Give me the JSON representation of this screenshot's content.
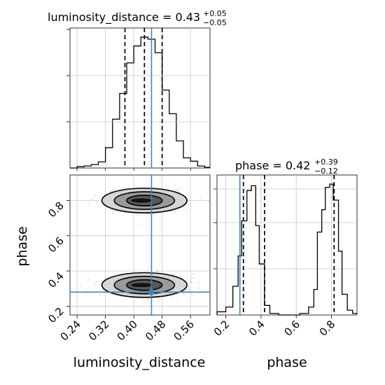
{
  "chart_data": {
    "type": "corner",
    "parameters": [
      "luminosity_distance",
      "phase"
    ],
    "truths": {
      "luminosity_distance": 0.45,
      "phase": 0.28
    },
    "luminosity_distance": {
      "title": "luminosity_distance = 0.43",
      "sup": "+0.05",
      "sub": "−0.05",
      "xlabel": "luminosity_distance",
      "xlim": [
        0.22,
        0.615
      ],
      "xticks": [
        "0.24",
        "0.32",
        "0.40",
        "0.48",
        "0.56"
      ],
      "xtick_values": [
        0.24,
        0.32,
        0.4,
        0.48,
        0.56
      ],
      "quantiles": [
        0.375,
        0.43,
        0.48
      ],
      "hist_edges": [
        0.22,
        0.24,
        0.26,
        0.28,
        0.3,
        0.32,
        0.34,
        0.36,
        0.38,
        0.4,
        0.42,
        0.44,
        0.46,
        0.48,
        0.5,
        0.52,
        0.54,
        0.56,
        0.58,
        0.6,
        0.615
      ],
      "hist_counts": [
        0,
        2,
        3,
        5,
        9,
        30,
        72,
        110,
        155,
        180,
        193,
        190,
        170,
        115,
        80,
        40,
        15,
        10,
        3,
        1
      ]
    },
    "phase": {
      "title": "phase = 0.42",
      "sup": "+0.39",
      "sub": "−0.12",
      "xlabel": "phase",
      "ylabel": "phase",
      "xlim": [
        0.15,
        0.945
      ],
      "xticks": [
        "0.2",
        "0.4",
        "0.6",
        "0.8"
      ],
      "xtick_values": [
        0.2,
        0.4,
        0.6,
        0.8
      ],
      "yticks": [
        "0.2",
        "0.4",
        "0.6",
        "0.8"
      ],
      "ytick_values": [
        0.2,
        0.4,
        0.6,
        0.8
      ],
      "quantiles": [
        0.3,
        0.42,
        0.815
      ],
      "hist_edges": [
        0.15,
        0.2,
        0.24,
        0.27,
        0.29,
        0.32,
        0.345,
        0.37,
        0.39,
        0.42,
        0.45,
        0.5,
        0.62,
        0.67,
        0.7,
        0.72,
        0.745,
        0.765,
        0.79,
        0.81,
        0.84,
        0.86,
        0.89,
        0.92,
        0.945
      ],
      "hist_counts": [
        2,
        5,
        18,
        37,
        59,
        78,
        81,
        56,
        32,
        6,
        1,
        0,
        1,
        5,
        16,
        52,
        66,
        80,
        82,
        72,
        40,
        13,
        3,
        1
      ]
    },
    "joint_modes": [
      {
        "center": [
          0.43,
          0.8
        ],
        "contours": [
          [
            0.05,
            0.03
          ],
          [
            0.085,
            0.05
          ],
          [
            0.12,
            0.07
          ]
        ]
      },
      {
        "center": [
          0.43,
          0.32
        ],
        "contours": [
          [
            0.05,
            0.03
          ],
          [
            0.085,
            0.05
          ],
          [
            0.12,
            0.07
          ]
        ]
      }
    ],
    "grid": true
  }
}
